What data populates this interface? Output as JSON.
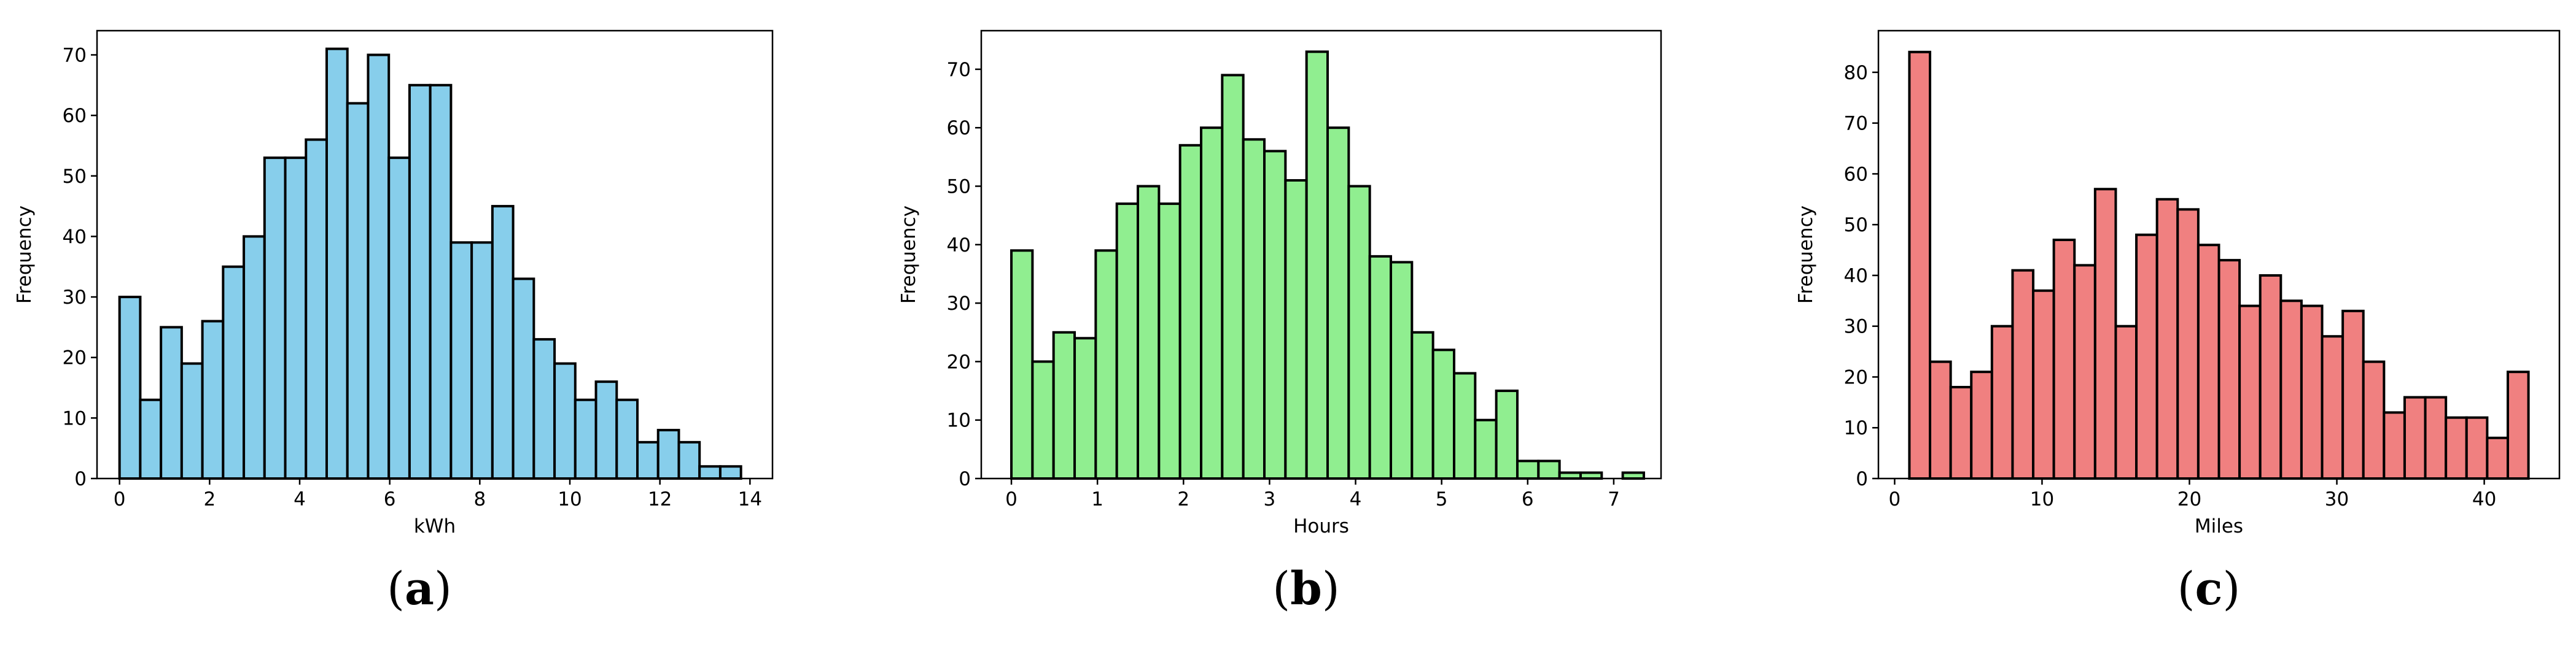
{
  "panel_captions": [
    "a",
    "b",
    "c"
  ],
  "chart_data": [
    {
      "type": "bar",
      "xlabel": "kWh",
      "ylabel": "Frequency",
      "xlim": [
        -0.5,
        14.5
      ],
      "ylim": [
        0,
        74
      ],
      "xticks": [
        0,
        2,
        4,
        6,
        8,
        10,
        12,
        14
      ],
      "yticks": [
        0,
        10,
        20,
        30,
        40,
        50,
        60,
        70
      ],
      "bin_start": 0.0,
      "bin_width": 0.46,
      "values": [
        30,
        13,
        25,
        19,
        26,
        35,
        40,
        53,
        53,
        56,
        71,
        62,
        70,
        53,
        65,
        65,
        39,
        39,
        45,
        33,
        23,
        19,
        13,
        16,
        13,
        6,
        8,
        6,
        2,
        2
      ],
      "color": "#87ceeb"
    },
    {
      "type": "bar",
      "xlabel": "Hours",
      "ylabel": "Frequency",
      "xlim": [
        -0.35,
        7.55
      ],
      "ylim": [
        0,
        76.6
      ],
      "xticks": [
        0,
        1,
        2,
        3,
        4,
        5,
        6,
        7
      ],
      "yticks": [
        0,
        10,
        20,
        30,
        40,
        50,
        60,
        70
      ],
      "bin_start": 0.0,
      "bin_width": 0.245,
      "values": [
        39,
        20,
        25,
        24,
        39,
        47,
        50,
        47,
        57,
        60,
        69,
        58,
        56,
        51,
        73,
        60,
        50,
        38,
        37,
        25,
        22,
        18,
        10,
        15,
        3,
        3,
        1,
        1,
        0,
        1
      ],
      "color": "#90ee90"
    },
    {
      "type": "bar",
      "xlabel": "Miles",
      "ylabel": "Frequency",
      "xlim": [
        -1.1,
        45.1
      ],
      "ylim": [
        0,
        88.2
      ],
      "xticks": [
        0,
        10,
        20,
        30,
        40
      ],
      "yticks": [
        0,
        10,
        20,
        30,
        40,
        50,
        60,
        70,
        80
      ],
      "bin_start": 1.0,
      "bin_width": 1.4,
      "values": [
        84,
        23,
        18,
        21,
        30,
        41,
        37,
        47,
        42,
        57,
        30,
        48,
        55,
        53,
        46,
        43,
        34,
        40,
        35,
        34,
        28,
        33,
        23,
        13,
        16,
        16,
        12,
        12,
        8,
        21
      ],
      "color": "#f08080"
    }
  ]
}
